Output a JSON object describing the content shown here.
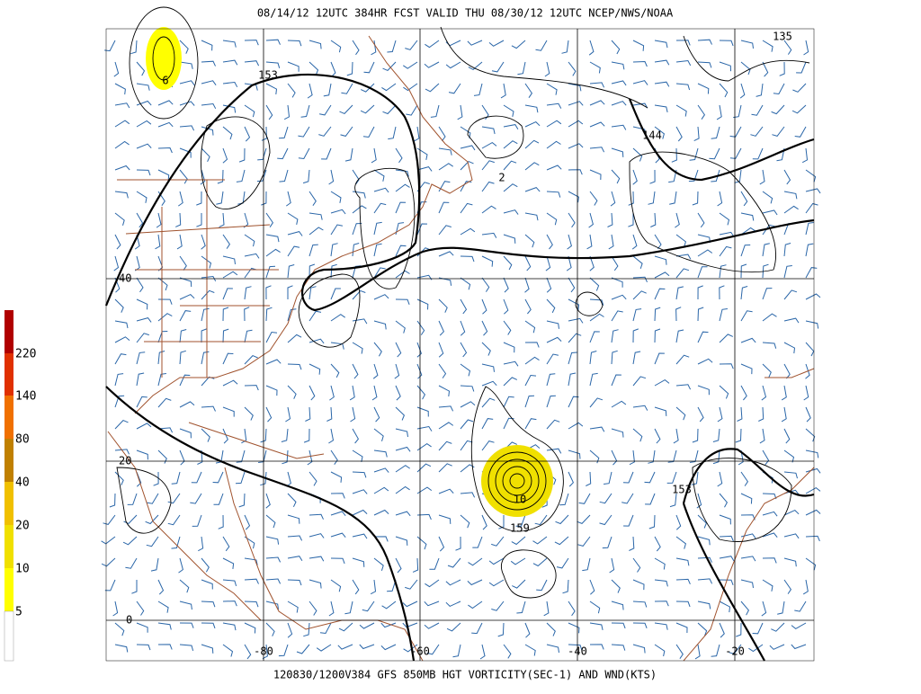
{
  "header": {
    "title": "08/14/12 12UTC  384HR  FCST VALID THU 08/30/12 12UTC  NCEP/NWS/NOAA"
  },
  "footer": {
    "caption": "120830/1200V384 GFS 850MB HGT VORTICITY(SEC-1) AND WND(KTS)"
  },
  "colorbar": {
    "labels": [
      "220",
      "140",
      "80",
      "40",
      "20",
      "10",
      "5"
    ]
  },
  "grid": {
    "lat_labels": [
      "40",
      "20",
      "0"
    ],
    "lon_labels": [
      "-80",
      "-60",
      "-40",
      "-20"
    ]
  },
  "contour_labels": [
    "153",
    "144",
    "135",
    "2",
    "6",
    "10",
    "159",
    "153"
  ]
}
